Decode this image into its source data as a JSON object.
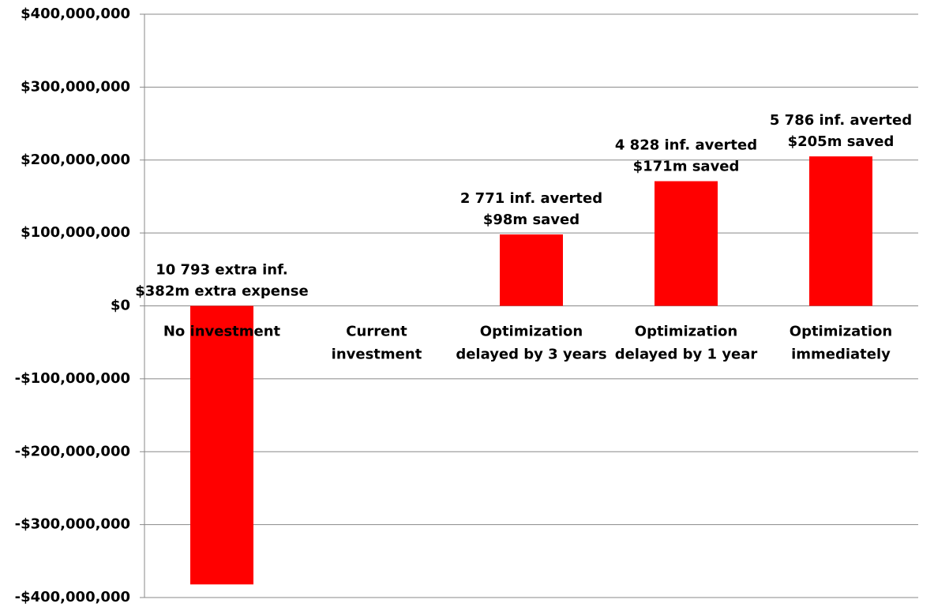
{
  "chart_data": {
    "type": "bar",
    "categories": [
      [
        "No investment"
      ],
      [
        "Current",
        "investment"
      ],
      [
        "Optimization",
        "delayed by 3 years"
      ],
      [
        "Optimization",
        "delayed by 1 year"
      ],
      [
        "Optimization",
        "immediately"
      ]
    ],
    "values": [
      -382000000,
      0,
      98000000,
      171000000,
      205000000
    ],
    "value_labels": [
      [
        "10 793 extra inf.",
        "$382m extra expense"
      ],
      null,
      [
        "2 771 inf. averted",
        "$98m saved"
      ],
      [
        "4 828 inf. averted",
        "$171m saved"
      ],
      [
        "5 786 inf. averted",
        "$205m saved"
      ]
    ],
    "color": "#ff0000",
    "label_color": "#ff0000",
    "ylim": [
      -400000000,
      400000000
    ],
    "yticks": [
      {
        "value": -400000000,
        "label": "-$400,000,000"
      },
      {
        "value": -300000000,
        "label": "-$300,000,000"
      },
      {
        "value": -200000000,
        "label": "-$200,000,000"
      },
      {
        "value": -100000000,
        "label": "-$100,000,000"
      },
      {
        "value": 0,
        "label": "$0"
      },
      {
        "value": 100000000,
        "label": "$100,000,000"
      },
      {
        "value": 200000000,
        "label": "$200,000,000"
      },
      {
        "value": 300000000,
        "label": "$300,000,000"
      },
      {
        "value": 400000000,
        "label": "$400,000,000"
      }
    ],
    "grid": true
  }
}
